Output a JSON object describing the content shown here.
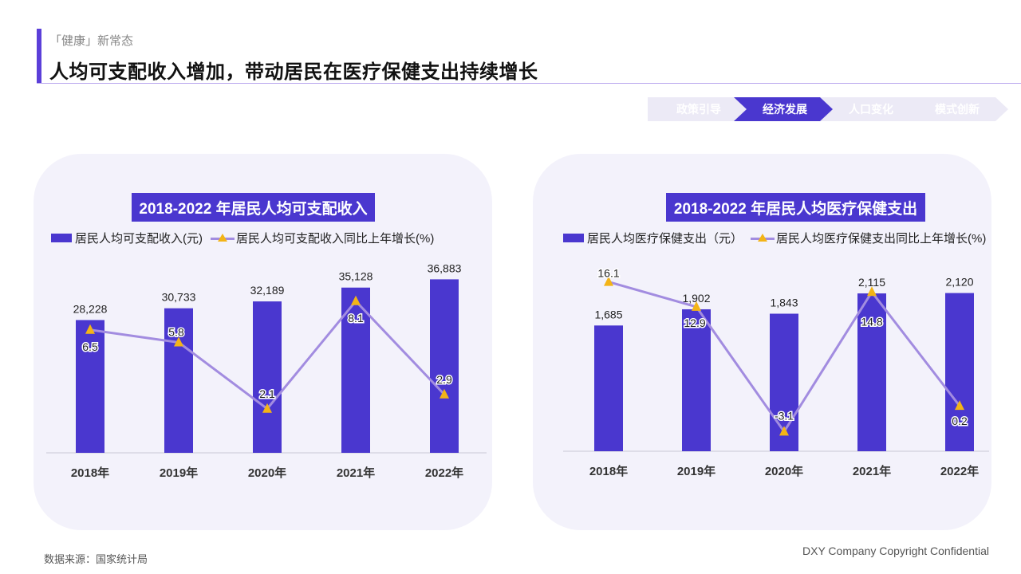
{
  "header": {
    "subtitle": "「健康」新常态",
    "title": "人均可支配收入增加，带动居民在医疗保健支出持续增长"
  },
  "steps": [
    {
      "label": "政策引导",
      "active": false
    },
    {
      "label": "经济发展",
      "active": true
    },
    {
      "label": "人口变化",
      "active": false
    },
    {
      "label": "模式创新",
      "active": false
    }
  ],
  "colors": {
    "bar": "#4a37cf",
    "line": "#a28ce0",
    "marker": "#f3b417",
    "step_active": "#4a37cf",
    "step_inactive": "#eceaf6"
  },
  "chart_data": [
    {
      "type": "bar",
      "title": "2018-2022 年居民人均可支配收入",
      "categories": [
        "2018年",
        "2019年",
        "2020年",
        "2021年",
        "2022年"
      ],
      "series": [
        {
          "name": "居民人均可支配收入(元)",
          "type": "bar",
          "values": [
            28228,
            30733,
            32189,
            35128,
            36883
          ],
          "labels": [
            "28,228",
            "30,733",
            "32,189",
            "35,128",
            "36,883"
          ]
        },
        {
          "name": "居民人均可支配收入同比上年增长(%)",
          "type": "line",
          "values": [
            6.5,
            5.8,
            2.1,
            8.1,
            2.9
          ],
          "labels": [
            "6.5",
            "5.8",
            "2.1",
            "8.1",
            "2.9"
          ]
        }
      ],
      "ylim": [
        0,
        40000
      ],
      "y2lim": [
        0,
        10
      ],
      "legend": "top"
    },
    {
      "type": "bar",
      "title": "2018-2022 年居民人均医疗保健支出",
      "categories": [
        "2018年",
        "2019年",
        "2020年",
        "2021年",
        "2022年"
      ],
      "series": [
        {
          "name": "居民人均医疗保健支出（元）",
          "type": "bar",
          "values": [
            1685,
            1902,
            1843,
            2115,
            2120
          ],
          "labels": [
            "1,685",
            "1,902",
            "1,843",
            "2,115",
            "2,120"
          ]
        },
        {
          "name": "居民人均医疗保健支出同比上年增长(%)",
          "type": "line",
          "values": [
            16.1,
            12.9,
            -3.1,
            14.8,
            0.2
          ],
          "labels": [
            "16.1",
            "12.9",
            "-3.1",
            "14.8",
            "0.2"
          ]
        }
      ],
      "ylim": [
        0,
        2500
      ],
      "y2lim": [
        -5,
        18
      ],
      "legend": "top"
    }
  ],
  "footer": {
    "source": "数据来源：国家统计局",
    "copyright": "DXY Company Copyright Confidential"
  }
}
